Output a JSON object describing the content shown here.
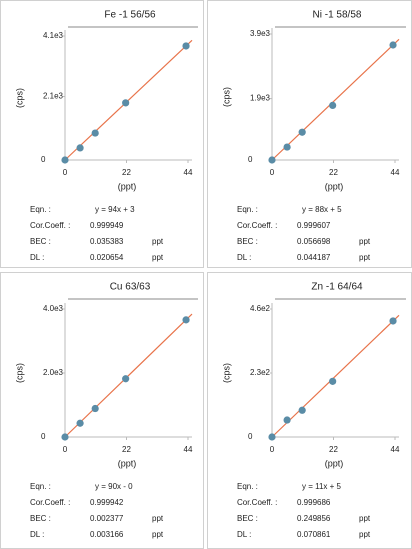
{
  "chart_data": [
    {
      "type": "scatter",
      "title": "Fe -1 56/56",
      "x_label": "(ppt)",
      "y_label": "(cps)",
      "x": [
        0,
        5.4,
        10.8,
        21.7,
        43.3
      ],
      "values": [
        0,
        400,
        890,
        1890,
        3770
      ],
      "point_color": "#5a8ca6",
      "line_color": "#e8734a",
      "xlim": [
        0,
        44
      ],
      "xticks": [
        0,
        22,
        44
      ],
      "ylim": [
        0,
        4100
      ],
      "yticks": [
        0,
        {
          "value": 2100,
          "label": "2.1e3"
        },
        {
          "value": 4100,
          "label": "4.1e3"
        }
      ],
      "stats": [
        {
          "label": "Eqn. :",
          "value": "y = 94x + 3"
        },
        {
          "label": "Cor.Coeff. :",
          "value": "0.999949"
        },
        {
          "label": "BEC :",
          "value": "0.035383",
          "unit": "ppt"
        },
        {
          "label": "DL :",
          "value": "0.020654",
          "unit": "ppt"
        }
      ]
    },
    {
      "type": "scatter",
      "title": "Ni -1 58/58",
      "x_label": "(ppt)",
      "y_label": "(cps)",
      "x": [
        0,
        5.4,
        10.8,
        21.7,
        43.3
      ],
      "values": [
        0,
        400,
        860,
        1690,
        3560
      ],
      "point_color": "#5a8ca6",
      "line_color": "#e8734a",
      "xlim": [
        0,
        44
      ],
      "xticks": [
        0,
        22,
        44
      ],
      "ylim": [
        0,
        3900
      ],
      "yticks": [
        0,
        {
          "value": 1900,
          "label": "1.9e3"
        },
        {
          "value": 3900,
          "label": "3.9e3"
        }
      ],
      "stats": [
        {
          "label": "Eqn. :",
          "value": "y = 88x + 5"
        },
        {
          "label": "Cor.Coeff. :",
          "value": "0.999607"
        },
        {
          "label": "BEC :",
          "value": "0.056698",
          "unit": "ppt"
        },
        {
          "label": "DL :",
          "value": "0.044187",
          "unit": "ppt"
        }
      ]
    },
    {
      "type": "scatter",
      "title": "Cu 63/63",
      "x_label": "(ppt)",
      "y_label": "(cps)",
      "x": [
        0,
        5.4,
        10.8,
        21.7,
        43.3
      ],
      "values": [
        0,
        430,
        890,
        1820,
        3660
      ],
      "point_color": "#5a8ca6",
      "line_color": "#e8734a",
      "xlim": [
        0,
        44
      ],
      "xticks": [
        0,
        22,
        44
      ],
      "ylim": [
        0,
        4000
      ],
      "yticks": [
        0,
        {
          "value": 2000,
          "label": "2.0e3"
        },
        {
          "value": 4000,
          "label": "4.0e3"
        }
      ],
      "stats": [
        {
          "label": "Eqn. :",
          "value": "y = 90x - 0"
        },
        {
          "label": "Cor.Coeff. :",
          "value": "0.999942"
        },
        {
          "label": "BEC :",
          "value": "0.002377",
          "unit": "ppt"
        },
        {
          "label": "DL :",
          "value": "0.003166",
          "unit": "ppt"
        }
      ]
    },
    {
      "type": "scatter",
      "title": "Zn -1 64/64",
      "x_label": "(ppt)",
      "y_label": "(cps)",
      "x": [
        0,
        5.4,
        10.8,
        21.7,
        43.3
      ],
      "values": [
        0,
        61,
        96,
        200,
        417
      ],
      "point_color": "#5a8ca6",
      "line_color": "#e8734a",
      "xlim": [
        0,
        44
      ],
      "xticks": [
        0,
        22,
        44
      ],
      "ylim": [
        0,
        460
      ],
      "yticks": [
        0,
        {
          "value": 230,
          "label": "2.3e2"
        },
        {
          "value": 460,
          "label": "4.6e2"
        }
      ],
      "stats": [
        {
          "label": "Eqn. :",
          "value": "y = 11x + 5"
        },
        {
          "label": "Cor.Coeff. :",
          "value": "0.999686"
        },
        {
          "label": "BEC :",
          "value": "0.249856",
          "unit": "ppt"
        },
        {
          "label": "DL :",
          "value": "0.070861",
          "unit": "ppt"
        }
      ]
    }
  ]
}
